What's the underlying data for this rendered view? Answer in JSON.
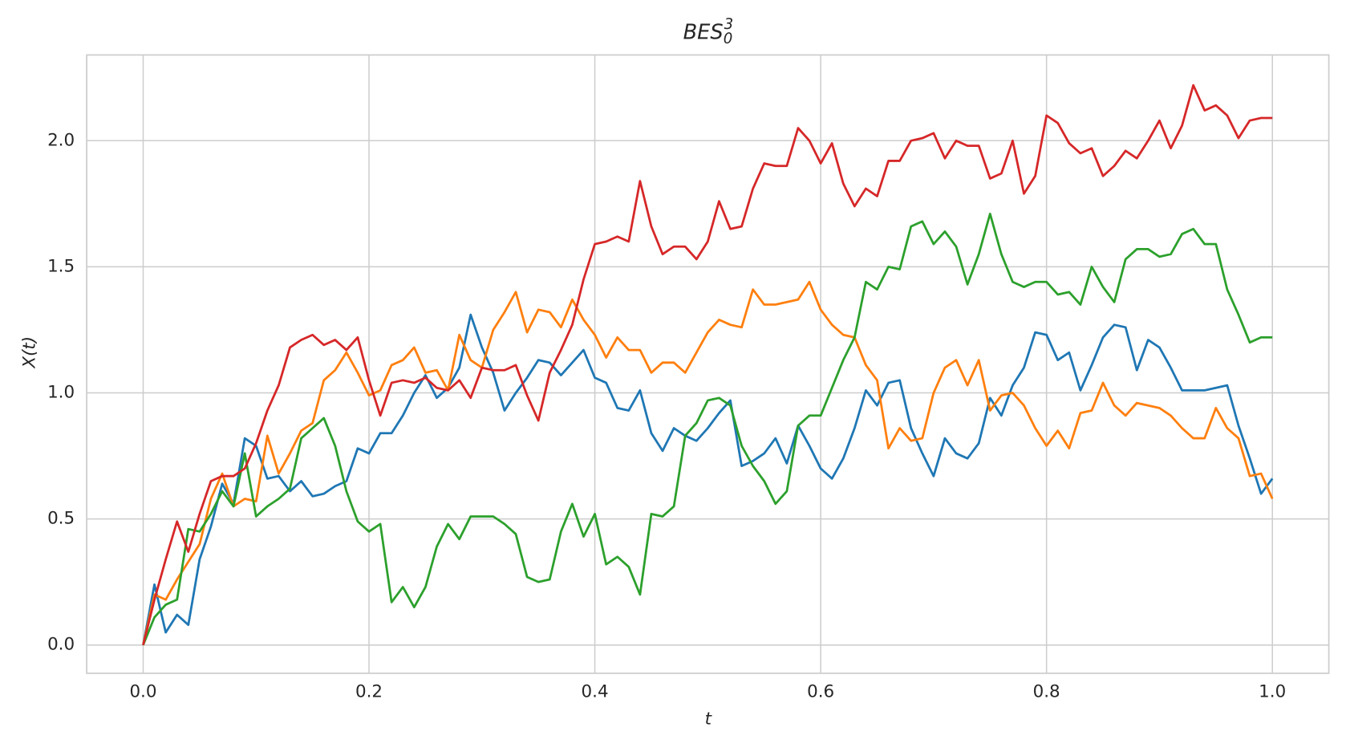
{
  "chart_data": {
    "type": "line",
    "title": {
      "base": "BES",
      "sub": "0",
      "sup": "3"
    },
    "xlabel": "t",
    "ylabel": "X(t)",
    "xlim": [
      -0.05,
      1.05
    ],
    "ylim": [
      -0.112,
      2.34
    ],
    "xticks": [
      {
        "value": 0,
        "label": "0.0"
      },
      0.2,
      0.4,
      0.6,
      0.8,
      {
        "value": 1,
        "label": "1.0"
      }
    ],
    "yticks": [
      {
        "value": 0,
        "label": "0.0"
      },
      0.5,
      {
        "value": 1,
        "label": "1.0"
      },
      1.5,
      {
        "value": 2,
        "label": "2.0"
      }
    ],
    "grid": true,
    "x": [
      0,
      0.01,
      0.02,
      0.03,
      0.04,
      0.05,
      0.06,
      0.07,
      0.08,
      0.09,
      0.1,
      0.11,
      0.12,
      0.13,
      0.14,
      0.15,
      0.16,
      0.17,
      0.18,
      0.19,
      0.2,
      0.21,
      0.22,
      0.23,
      0.24,
      0.25,
      0.26,
      0.27,
      0.28,
      0.29,
      0.3,
      0.31,
      0.32,
      0.33,
      0.34,
      0.35,
      0.36,
      0.37,
      0.38,
      0.39,
      0.4,
      0.41,
      0.42,
      0.43,
      0.44,
      0.45,
      0.46,
      0.47,
      0.48,
      0.49,
      0.5,
      0.51,
      0.52,
      0.53,
      0.54,
      0.55,
      0.56,
      0.57,
      0.58,
      0.59,
      0.6,
      0.61,
      0.62,
      0.63,
      0.64,
      0.65,
      0.66,
      0.67,
      0.68,
      0.69,
      0.7,
      0.71,
      0.72,
      0.73,
      0.74,
      0.75,
      0.76,
      0.77,
      0.78,
      0.79,
      0.8,
      0.81,
      0.82,
      0.83,
      0.84,
      0.85,
      0.86,
      0.87,
      0.88,
      0.89,
      0.9,
      0.91,
      0.92,
      0.93,
      0.94,
      0.95,
      0.96,
      0.97,
      0.98,
      0.99,
      1.0
    ],
    "series": [
      {
        "color": "#1f77b4",
        "values": [
          0,
          0.24,
          0.05,
          0.12,
          0.08,
          0.34,
          0.47,
          0.64,
          0.56,
          0.82,
          0.79,
          0.66,
          0.67,
          0.61,
          0.65,
          0.59,
          0.6,
          0.63,
          0.65,
          0.78,
          0.76,
          0.84,
          0.84,
          0.91,
          1.0,
          1.07,
          0.98,
          1.02,
          1.1,
          1.31,
          1.18,
          1.08,
          0.93,
          1.0,
          1.06,
          1.13,
          1.12,
          1.07,
          1.12,
          1.17,
          1.06,
          1.04,
          0.94,
          0.93,
          1.01,
          0.84,
          0.77,
          0.86,
          0.83,
          0.81,
          0.86,
          0.92,
          0.97,
          0.71,
          0.73,
          0.76,
          0.82,
          0.72,
          0.87,
          0.79,
          0.7,
          0.66,
          0.74,
          0.86,
          1.01,
          0.95,
          1.04,
          1.05,
          0.86,
          0.76,
          0.67,
          0.82,
          0.76,
          0.74,
          0.8,
          0.98,
          0.91,
          1.03,
          1.1,
          1.24,
          1.23,
          1.13,
          1.16,
          1.01,
          1.11,
          1.22,
          1.27,
          1.26,
          1.09,
          1.21,
          1.18,
          1.1,
          1.01,
          1.01,
          1.01,
          1.02,
          1.03,
          0.87,
          0.74,
          0.6,
          0.66
        ]
      },
      {
        "color": "#ff7f0e",
        "values": [
          0,
          0.2,
          0.18,
          0.26,
          0.33,
          0.4,
          0.58,
          0.68,
          0.55,
          0.58,
          0.57,
          0.83,
          0.68,
          0.76,
          0.85,
          0.88,
          1.05,
          1.09,
          1.16,
          1.08,
          0.99,
          1.01,
          1.11,
          1.13,
          1.18,
          1.08,
          1.09,
          1.01,
          1.23,
          1.13,
          1.1,
          1.25,
          1.32,
          1.4,
          1.24,
          1.33,
          1.32,
          1.26,
          1.37,
          1.29,
          1.23,
          1.14,
          1.22,
          1.17,
          1.17,
          1.08,
          1.12,
          1.12,
          1.08,
          1.16,
          1.24,
          1.29,
          1.27,
          1.26,
          1.41,
          1.35,
          1.35,
          1.36,
          1.37,
          1.44,
          1.33,
          1.27,
          1.23,
          1.22,
          1.11,
          1.05,
          0.78,
          0.86,
          0.81,
          0.82,
          1.0,
          1.1,
          1.13,
          1.03,
          1.13,
          0.93,
          0.99,
          1.0,
          0.95,
          0.86,
          0.79,
          0.85,
          0.78,
          0.92,
          0.93,
          1.04,
          0.95,
          0.91,
          0.96,
          0.95,
          0.94,
          0.91,
          0.86,
          0.82,
          0.82,
          0.94,
          0.86,
          0.82,
          0.67,
          0.68,
          0.58
        ]
      },
      {
        "color": "#2ca02c",
        "values": [
          0,
          0.11,
          0.16,
          0.18,
          0.46,
          0.45,
          0.52,
          0.61,
          0.55,
          0.76,
          0.51,
          0.55,
          0.58,
          0.62,
          0.82,
          0.86,
          0.9,
          0.79,
          0.61,
          0.49,
          0.45,
          0.48,
          0.17,
          0.23,
          0.15,
          0.23,
          0.39,
          0.48,
          0.42,
          0.51,
          0.51,
          0.51,
          0.48,
          0.44,
          0.27,
          0.25,
          0.26,
          0.45,
          0.56,
          0.43,
          0.52,
          0.32,
          0.35,
          0.31,
          0.2,
          0.52,
          0.51,
          0.55,
          0.83,
          0.88,
          0.97,
          0.98,
          0.95,
          0.79,
          0.71,
          0.65,
          0.56,
          0.61,
          0.87,
          0.91,
          0.91,
          1.02,
          1.13,
          1.22,
          1.44,
          1.41,
          1.5,
          1.49,
          1.66,
          1.68,
          1.59,
          1.64,
          1.58,
          1.43,
          1.55,
          1.71,
          1.55,
          1.44,
          1.42,
          1.44,
          1.44,
          1.39,
          1.4,
          1.35,
          1.5,
          1.42,
          1.36,
          1.53,
          1.57,
          1.57,
          1.54,
          1.55,
          1.63,
          1.65,
          1.59,
          1.59,
          1.41,
          1.31,
          1.2,
          1.22,
          1.22
        ]
      },
      {
        "color": "#d62728",
        "values": [
          0,
          0.18,
          0.34,
          0.49,
          0.37,
          0.52,
          0.65,
          0.67,
          0.67,
          0.7,
          0.8,
          0.93,
          1.03,
          1.18,
          1.21,
          1.23,
          1.19,
          1.21,
          1.17,
          1.22,
          1.05,
          0.91,
          1.04,
          1.05,
          1.04,
          1.06,
          1.02,
          1.01,
          1.05,
          0.98,
          1.1,
          1.09,
          1.09,
          1.11,
          0.99,
          0.89,
          1.08,
          1.17,
          1.27,
          1.45,
          1.59,
          1.6,
          1.62,
          1.6,
          1.84,
          1.66,
          1.55,
          1.58,
          1.58,
          1.53,
          1.6,
          1.76,
          1.65,
          1.66,
          1.81,
          1.91,
          1.9,
          1.9,
          2.05,
          2.0,
          1.91,
          1.99,
          1.83,
          1.74,
          1.81,
          1.78,
          1.92,
          1.92,
          2.0,
          2.01,
          2.03,
          1.93,
          2.0,
          1.98,
          1.98,
          1.85,
          1.87,
          2.0,
          1.79,
          1.86,
          2.1,
          2.07,
          1.99,
          1.95,
          1.97,
          1.86,
          1.9,
          1.96,
          1.93,
          2.0,
          2.08,
          1.97,
          2.06,
          2.22,
          2.12,
          2.14,
          2.1,
          2.01,
          2.08,
          2.09,
          2.09
        ]
      }
    ]
  }
}
